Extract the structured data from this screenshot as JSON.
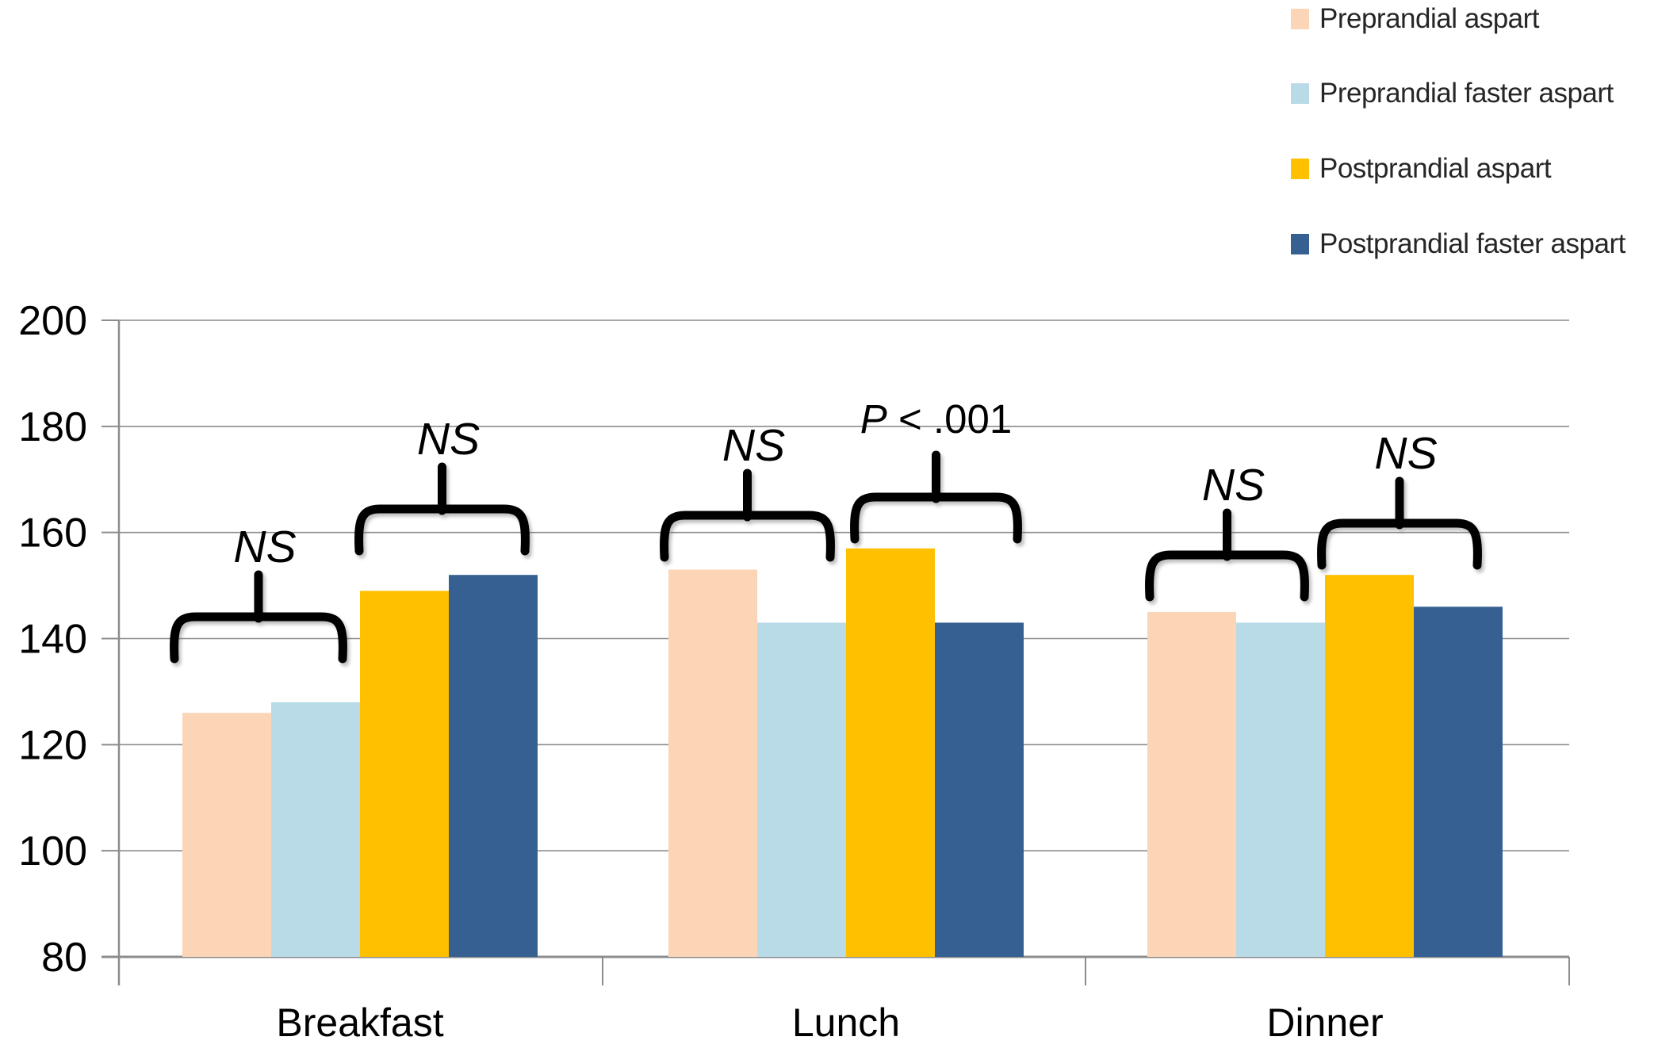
{
  "chart_data": {
    "type": "bar",
    "title": "",
    "xlabel": "",
    "ylabel": "",
    "ylim": [
      80,
      200
    ],
    "yticks": [
      200,
      180,
      160,
      140,
      120,
      100,
      80
    ],
    "grid": true,
    "legend_position": "top-right",
    "categories": [
      "Breakfast",
      "Lunch",
      "Dinner"
    ],
    "series": [
      {
        "name": "Preprandial aspart",
        "color": "#FBD5B5",
        "values": [
          126,
          153,
          145
        ]
      },
      {
        "name": "Preprandial faster aspart",
        "color": "#B9DBE7",
        "values": [
          128,
          143,
          143
        ]
      },
      {
        "name": "Postprandial aspart",
        "color": "#FFC000",
        "values": [
          149,
          157,
          152
        ]
      },
      {
        "name": "Postprandial faster aspart",
        "color": "#366092",
        "values": [
          152,
          143,
          146
        ]
      }
    ],
    "annotations": [
      {
        "group": "Breakfast",
        "pair": "preprandial",
        "bars": [
          "Preprandial aspart",
          "Preprandial faster aspart"
        ],
        "label": "NS"
      },
      {
        "group": "Breakfast",
        "pair": "postprandial",
        "bars": [
          "Postprandial aspart",
          "Postprandial faster aspart"
        ],
        "label": "NS"
      },
      {
        "group": "Lunch",
        "pair": "preprandial",
        "bars": [
          "Preprandial aspart",
          "Preprandial faster aspart"
        ],
        "label": "NS"
      },
      {
        "group": "Lunch",
        "pair": "postprandial",
        "bars": [
          "Postprandial aspart",
          "Postprandial faster aspart"
        ],
        "label": "P < .001"
      },
      {
        "group": "Dinner",
        "pair": "preprandial",
        "bars": [
          "Preprandial aspart",
          "Preprandial faster aspart"
        ],
        "label": "NS"
      },
      {
        "group": "Dinner",
        "pair": "postprandial",
        "bars": [
          "Postprandial aspart",
          "Postprandial faster aspart"
        ],
        "label": "NS"
      }
    ],
    "axis_color": "#8c8c8c",
    "gridline_color": "#8c8c8c",
    "annotation_color": "#000000"
  }
}
